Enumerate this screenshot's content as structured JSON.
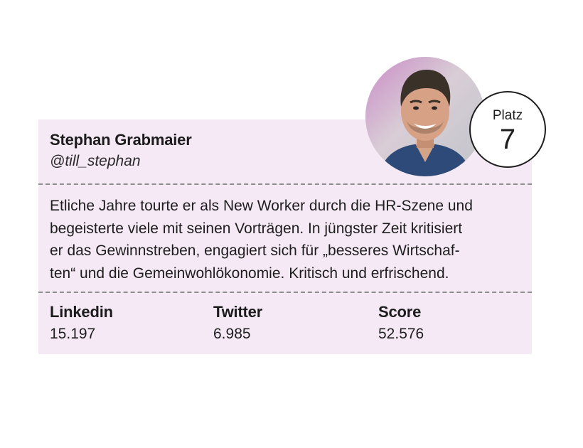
{
  "profile": {
    "name": "Stephan Grabmaier",
    "handle": "@till_stephan"
  },
  "bio_lines": [
    "Etliche Jahre tourte er als New Worker durch die HR-Szene und",
    "begeisterte viele mit seinen Vorträgen. In jüngster Zeit kritisiert",
    "er das Gewinnstreben, engagiert sich für „besseres Wirtschaf-",
    "ten“ und die Gemeinwohlökonomie. Kritisch und erfrischend."
  ],
  "stats": [
    {
      "label": "Linkedin",
      "value": "15.197"
    },
    {
      "label": "Twitter",
      "value": "6.985"
    },
    {
      "label": "Score",
      "value": "52.576"
    }
  ],
  "rank": {
    "label": "Platz",
    "number": "7"
  },
  "colors": {
    "card_background": "#f6e9f6",
    "text": "#1e1e1e",
    "divider": "#8c8c8c"
  },
  "icons": {
    "avatar": "person-photo"
  }
}
